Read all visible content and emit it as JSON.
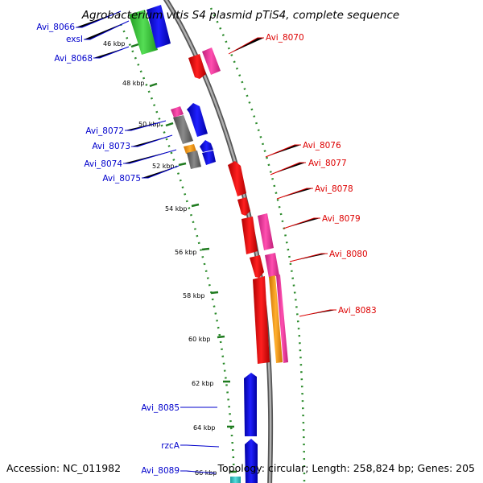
{
  "title": "Agrobacterium vitis S4 plasmid pTiS4, complete sequence",
  "footer": {
    "accession": "Accession: NC_011982",
    "summary": "Topology: circular; Length: 258,824 bp; Genes: 205"
  },
  "ticks": [
    "46 kbp",
    "48 kbp",
    "50 kbp",
    "52 kbp",
    "54 kbp",
    "56 kbp",
    "58 kbp",
    "60 kbp",
    "62 kbp",
    "64 kbp",
    "66 kbp"
  ],
  "labels_left": [
    "Avi_8066",
    "exsI",
    "Avi_8068",
    "Avi_8072",
    "Avi_8073",
    "Avi_8074",
    "Avi_8075",
    "Avi_8085",
    "rzcA",
    "Avi_8089"
  ],
  "labels_right": [
    "Avi_8070",
    "Avi_8076",
    "Avi_8077",
    "Avi_8078",
    "Avi_8079",
    "Avi_8080",
    "Avi_8083"
  ],
  "colors": {
    "backbone": "#8c8c8c",
    "tick_green": "#1e7a1e",
    "red": "#ff0000",
    "pink": "#ff3399",
    "orange": "#ff9a00",
    "blue": "#0000ff",
    "gray": "#6e6e6e",
    "green": "#33cc33",
    "cyan": "#33cccc",
    "label_blue": "#0000cc",
    "label_red": "#dd0000"
  }
}
